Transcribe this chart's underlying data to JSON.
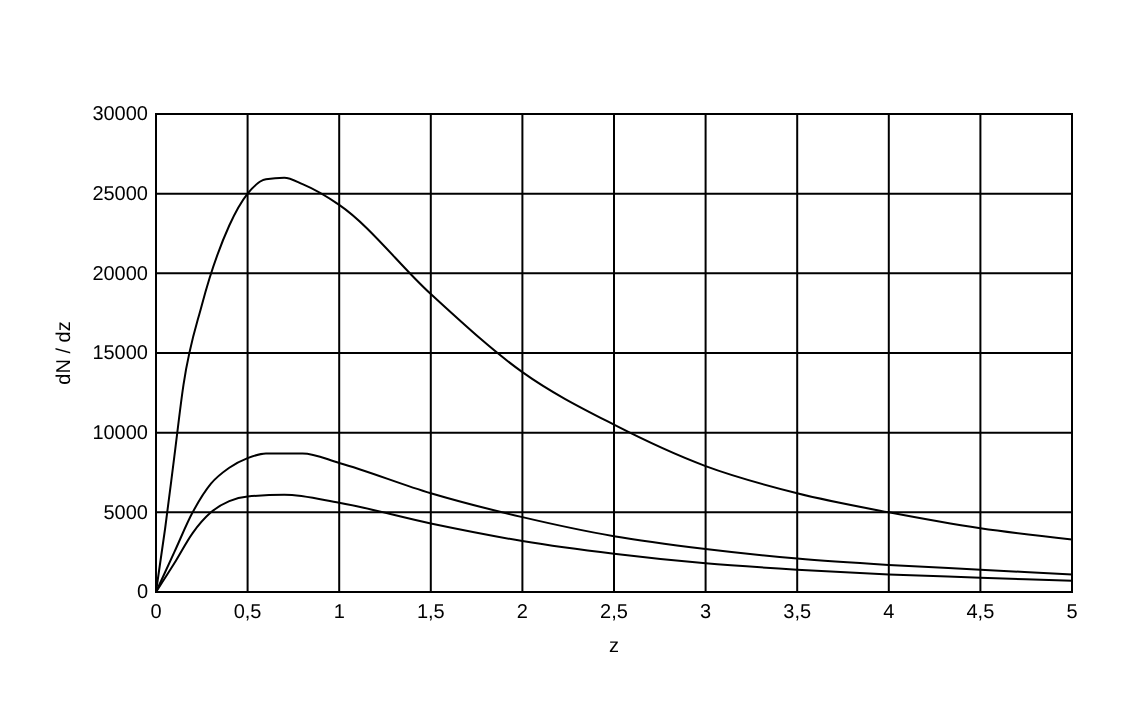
{
  "chart_data": {
    "type": "line",
    "xlabel": "z",
    "ylabel": "dN / dz",
    "grid": true,
    "marker": "none",
    "line_style": "solid",
    "xlim": [
      0,
      5
    ],
    "ylim": [
      0,
      30000
    ],
    "xticks": [
      0,
      {
        "value": 0.5,
        "label": "0,5"
      },
      1,
      {
        "value": 1.5,
        "label": "1,5"
      },
      2,
      {
        "value": 2.5,
        "label": "2,5"
      },
      3,
      {
        "value": 3.5,
        "label": "3,5"
      },
      4,
      {
        "value": 4.5,
        "label": "4,5"
      },
      5
    ],
    "yticks": [
      0,
      5000,
      10000,
      15000,
      20000,
      25000,
      30000
    ],
    "series": [
      {
        "color": "#000000",
        "x": [
          0,
          0.05,
          0.1,
          0.15,
          0.25,
          0.4,
          0.5,
          0.6,
          0.7,
          0.8,
          1,
          1.5,
          2,
          2.5,
          3,
          3.5,
          4,
          4.5,
          5
        ],
        "values": [
          0,
          4000,
          8500,
          13000,
          18000,
          23000,
          25000,
          25900,
          26000,
          25600,
          24300,
          18700,
          13800,
          10500,
          7900,
          6200,
          5000,
          4000,
          3300
        ]
      },
      {
        "color": "#000000",
        "x": [
          0,
          0.1,
          0.2,
          0.3,
          0.4,
          0.5,
          0.6,
          0.8,
          1,
          1.5,
          2,
          2.5,
          3,
          3.5,
          4,
          4.5,
          5
        ],
        "values": [
          0,
          2500,
          5000,
          6800,
          7800,
          8400,
          8700,
          8700,
          8100,
          6200,
          4700,
          3500,
          2700,
          2100,
          1700,
          1400,
          1100
        ]
      },
      {
        "color": "#000000",
        "x": [
          0,
          0.1,
          0.2,
          0.3,
          0.4,
          0.5,
          0.7,
          1,
          1.5,
          2,
          2.5,
          3,
          3.5,
          4,
          4.5,
          5
        ],
        "values": [
          0,
          1800,
          3700,
          5000,
          5700,
          6000,
          6100,
          5600,
          4300,
          3200,
          2400,
          1800,
          1400,
          1100,
          900,
          700
        ]
      }
    ]
  }
}
